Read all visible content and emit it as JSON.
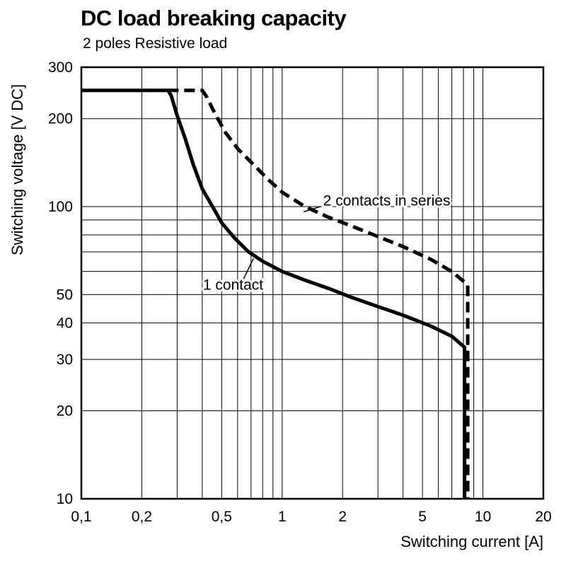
{
  "page": {
    "title": "DC load breaking capacity",
    "subtitle": "2 poles Resistive load"
  },
  "chart_data": {
    "type": "line",
    "title": "DC load breaking capacity",
    "subtitle": "2 poles Resistive load",
    "xlabel": "Switching current [A]",
    "ylabel": "Switching voltage [V DC]",
    "x_scale": "log",
    "y_scale": "log",
    "xlim": [
      0.1,
      20
    ],
    "ylim": [
      10,
      300
    ],
    "grid": "full minor log grid, black lines",
    "x_ticks": [
      {
        "value": 0.1,
        "label": "0,1"
      },
      {
        "value": 0.2,
        "label": "0,2"
      },
      {
        "value": 0.5,
        "label": "0,5"
      },
      {
        "value": 1,
        "label": "1"
      },
      {
        "value": 2,
        "label": "2"
      },
      {
        "value": 5,
        "label": "5"
      },
      {
        "value": 10,
        "label": "10"
      },
      {
        "value": 20,
        "label": "20"
      }
    ],
    "y_ticks": [
      {
        "value": 10,
        "label": "10"
      },
      {
        "value": 20,
        "label": "20"
      },
      {
        "value": 30,
        "label": "30"
      },
      {
        "value": 40,
        "label": "40"
      },
      {
        "value": 50,
        "label": "50"
      },
      {
        "value": 100,
        "label": "100"
      },
      {
        "value": 200,
        "label": "200"
      },
      {
        "value": 300,
        "label": "300"
      }
    ],
    "series": [
      {
        "name": "2 contacts in series",
        "style": "dashed",
        "color": "#000000",
        "points": [
          [
            0.27,
            250
          ],
          [
            0.4,
            250
          ],
          [
            0.42,
            238
          ],
          [
            0.46,
            210
          ],
          [
            0.52,
            180
          ],
          [
            0.6,
            158
          ],
          [
            0.7,
            142
          ],
          [
            0.85,
            124
          ],
          [
            1.0,
            112
          ],
          [
            1.3,
            100
          ],
          [
            1.7,
            92
          ],
          [
            2.2,
            86
          ],
          [
            3.0,
            79
          ],
          [
            4.0,
            73
          ],
          [
            5.5,
            66
          ],
          [
            7.0,
            60
          ],
          [
            8.4,
            54
          ],
          [
            8.4,
            10
          ]
        ]
      },
      {
        "name": "1 contact",
        "style": "solid",
        "color": "#000000",
        "points": [
          [
            0.1,
            250
          ],
          [
            0.27,
            250
          ],
          [
            0.28,
            240
          ],
          [
            0.3,
            205
          ],
          [
            0.33,
            170
          ],
          [
            0.36,
            140
          ],
          [
            0.4,
            115
          ],
          [
            0.45,
            100
          ],
          [
            0.5,
            88
          ],
          [
            0.58,
            78
          ],
          [
            0.68,
            70
          ],
          [
            0.8,
            65
          ],
          [
            1.0,
            60
          ],
          [
            1.3,
            56
          ],
          [
            1.7,
            52.5
          ],
          [
            2.2,
            49
          ],
          [
            3.0,
            45.5
          ],
          [
            4.0,
            42.5
          ],
          [
            5.5,
            39
          ],
          [
            7.0,
            36
          ],
          [
            8.1,
            33
          ],
          [
            8.1,
            10
          ]
        ]
      }
    ],
    "annotations": [
      {
        "text": "1 contact",
        "x": 0.57,
        "y": 52,
        "anchor": "middle",
        "leader": [
          [
            0.63,
            55
          ],
          [
            0.72,
            66.5
          ]
        ]
      },
      {
        "text": "2 contacts in series",
        "x": 1.6,
        "y": 101,
        "anchor": "start",
        "leader": [
          [
            1.55,
            100
          ],
          [
            1.28,
            96
          ]
        ]
      }
    ],
    "colors": {
      "line": "#000000",
      "grid": "#000000",
      "background": "#ffffff"
    },
    "legend_position": "none (inline annotations with leader lines)"
  }
}
